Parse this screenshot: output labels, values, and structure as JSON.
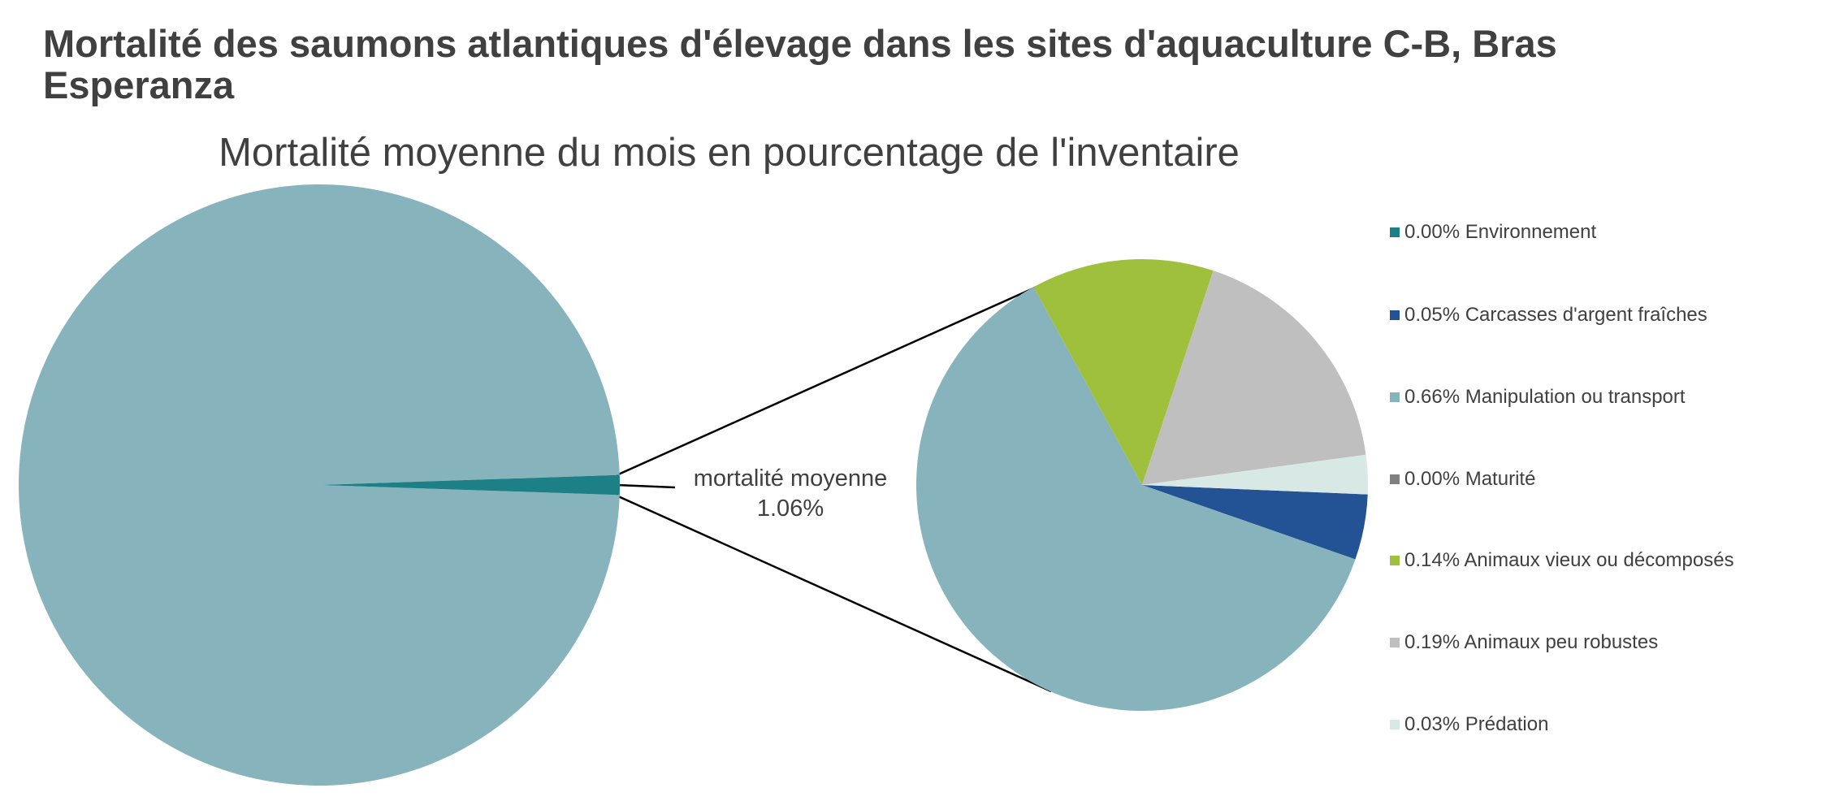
{
  "chart_data": {
    "type": "pie",
    "subtype": "pie-of-pie",
    "title": "Mortalité des saumons atlantiques d'élevage dans les sites d'aquaculture C-B, Bras Esperanza",
    "subtitle": "Mortalité moyenne du mois en pourcentage de l'inventaire",
    "primary_pie": {
      "slices": [
        {
          "value": 98.94,
          "color": "#87b4bc"
        },
        {
          "value": 1.06,
          "color": "#1e8087"
        }
      ]
    },
    "secondary_label": {
      "line1": "mortalité moyenne",
      "line2": "1.06%"
    },
    "secondary_pie": {
      "start_angle_deg": 2.4,
      "slices": [
        {
          "label": "0.00% Environnement",
          "value": 0.0,
          "color": "#1e8087"
        },
        {
          "label": "0.05% Carcasses d'argent fraîches",
          "value": 0.05,
          "color": "#235394"
        },
        {
          "label": "0.66% Manipulation ou transport",
          "value": 0.66,
          "color": "#87b4bc"
        },
        {
          "label": "0.00% Maturité",
          "value": 0.0,
          "color": "#808080"
        },
        {
          "label": "0.14% Animaux vieux ou décomposés",
          "value": 0.14,
          "color": "#9fc03c"
        },
        {
          "label": "0.19% Animaux peu robustes",
          "value": 0.19,
          "color": "#bfbfbf"
        },
        {
          "label": "0.03% Prédation",
          "value": 0.03,
          "color": "#d7e8e5"
        }
      ]
    },
    "legend_position": "right"
  }
}
